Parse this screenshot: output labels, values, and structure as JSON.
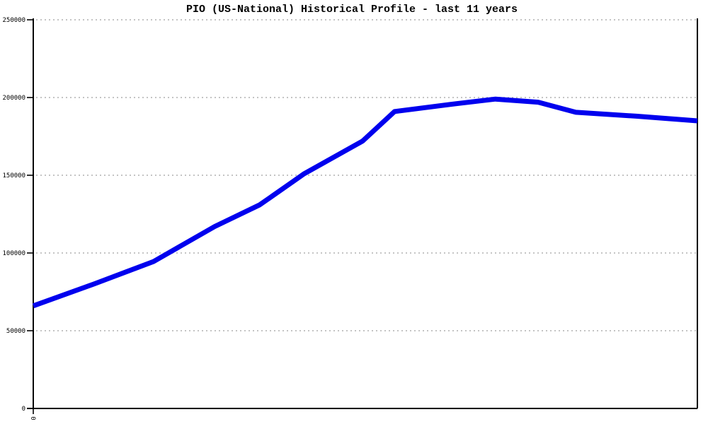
{
  "title": "PIO (US-National) Historical Profile - last 11 years",
  "colors": {
    "line": "#0000ee",
    "grid": "#b0b0b0",
    "axis": "#000000",
    "background": "#ffffff",
    "text": "#000000"
  },
  "chart_data": {
    "type": "line",
    "title": "PIO (US-National) Historical Profile - last 11 years",
    "xlabel": "",
    "ylabel": "",
    "x_axis": {
      "tick_labels": [
        "0"
      ],
      "tick_label_rotated": true,
      "span_years": 11
    },
    "y_axis": {
      "ticks": [
        0,
        50000,
        100000,
        150000,
        200000,
        250000
      ],
      "range": [
        0,
        250000
      ]
    },
    "grid": "dotted horizontal gridlines at each y tick",
    "legend": "none",
    "series": [
      {
        "name": "PIO (US-National)",
        "color": "#0000ee",
        "points": [
          {
            "x": 0.0,
            "value": 66000
          },
          {
            "x": 0.091,
            "value": 80000
          },
          {
            "x": 0.181,
            "value": 94500
          },
          {
            "x": 0.273,
            "value": 117000
          },
          {
            "x": 0.341,
            "value": 131000
          },
          {
            "x": 0.408,
            "value": 151000
          },
          {
            "x": 0.496,
            "value": 172000
          },
          {
            "x": 0.544,
            "value": 191000
          },
          {
            "x": 0.636,
            "value": 196000
          },
          {
            "x": 0.696,
            "value": 199000
          },
          {
            "x": 0.76,
            "value": 197000
          },
          {
            "x": 0.817,
            "value": 190500
          },
          {
            "x": 0.908,
            "value": 188000
          },
          {
            "x": 1.0,
            "value": 185000
          }
        ]
      }
    ]
  }
}
